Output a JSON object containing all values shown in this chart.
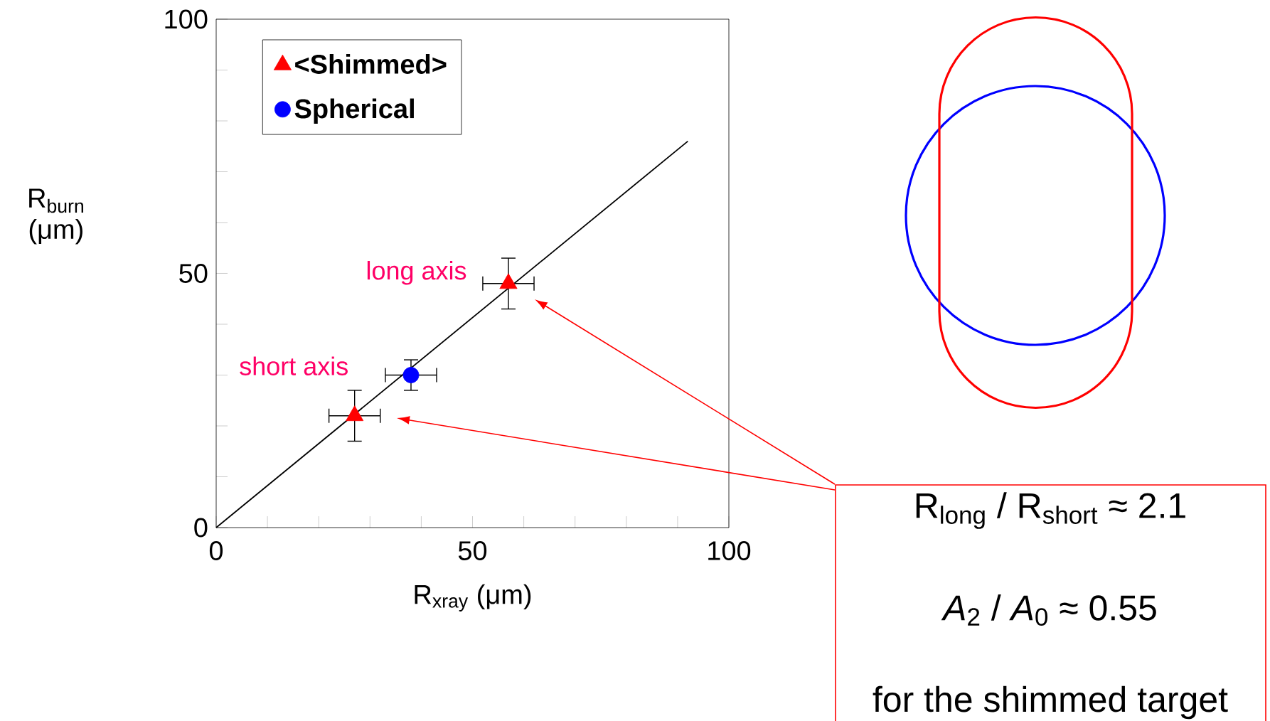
{
  "chart_data": {
    "type": "scatter",
    "xlabel": "R$_{xray}$ (μm)",
    "ylabel": "R$_{burn}$ (μm)",
    "xlim": [
      0,
      100
    ],
    "ylim": [
      0,
      100
    ],
    "xticks": [
      0,
      {
        "value": 10,
        "label": null
      },
      {
        "value": 20,
        "label": null
      },
      {
        "value": 30,
        "label": null
      },
      {
        "value": 40,
        "label": null
      },
      50,
      {
        "value": 60,
        "label": null
      },
      {
        "value": 70,
        "label": null
      },
      {
        "value": 80,
        "label": null
      },
      {
        "value": 90,
        "label": null
      },
      100
    ],
    "yticks": [
      0,
      {
        "value": 10,
        "label": null
      },
      {
        "value": 20,
        "label": null
      },
      {
        "value": 30,
        "label": null
      },
      {
        "value": 40,
        "label": null
      },
      50,
      {
        "value": 60,
        "label": null
      },
      {
        "value": 70,
        "label": null
      },
      {
        "value": 80,
        "label": null
      },
      {
        "value": 90,
        "label": null
      },
      100
    ],
    "legend": "top left",
    "series": [
      {
        "name": "<Shimmed>",
        "color": "#ff0000",
        "marker": "triangle",
        "x": [
          27,
          57
        ],
        "values": [
          22,
          48
        ],
        "errors": [
          5,
          5
        ],
        "xerrors": [
          5,
          5
        ]
      },
      {
        "name": "Spherical",
        "color": "#0000ff",
        "marker": "circle",
        "x": [
          38
        ],
        "values": [
          30
        ],
        "errors": [
          3
        ],
        "xerrors": [
          5
        ]
      },
      {
        "type": "line",
        "color": "#000000",
        "marker": "none",
        "x": [
          0,
          92
        ],
        "values": [
          0,
          76
        ]
      }
    ],
    "annotations": [
      {
        "text": "long axis",
        "x": 57,
        "y": 48
      },
      {
        "text": "short axis",
        "x": 27,
        "y": 22
      },
      "R$_{long}$ / R$_{short}$ ≈ 2.1",
      "*A*$_{2}$ / *A*$_{0}$ ≈ 0.55",
      "for the shimmed target"
    ]
  }
}
